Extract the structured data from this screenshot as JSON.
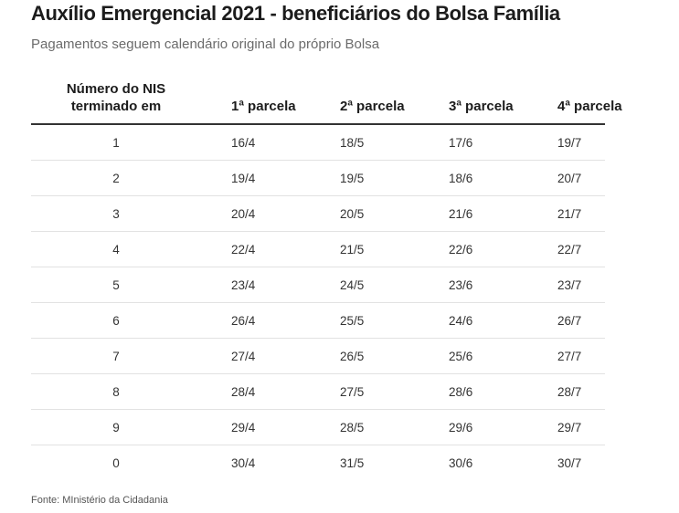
{
  "title": "Auxílio Emergencial 2021 - beneficiários do Bolsa Família",
  "subtitle": "Pagamentos seguem calendário original do próprio Bolsa",
  "table": {
    "headers": {
      "nis_line1": "Número do NIS",
      "nis_line2": "terminado em",
      "p1": "1ª parcela",
      "p2": "2ª parcela",
      "p3": "3ª parcela",
      "p4": "4ª parcela"
    },
    "rows": [
      {
        "nis": "1",
        "p1": "16/4",
        "p2": "18/5",
        "p3": "17/6",
        "p4": "19/7"
      },
      {
        "nis": "2",
        "p1": "19/4",
        "p2": "19/5",
        "p3": "18/6",
        "p4": "20/7"
      },
      {
        "nis": "3",
        "p1": "20/4",
        "p2": "20/5",
        "p3": "21/6",
        "p4": "21/7"
      },
      {
        "nis": "4",
        "p1": "22/4",
        "p2": "21/5",
        "p3": "22/6",
        "p4": "22/7"
      },
      {
        "nis": "5",
        "p1": "23/4",
        "p2": "24/5",
        "p3": "23/6",
        "p4": "23/7"
      },
      {
        "nis": "6",
        "p1": "26/4",
        "p2": "25/5",
        "p3": "24/6",
        "p4": "26/7"
      },
      {
        "nis": "7",
        "p1": "27/4",
        "p2": "26/5",
        "p3": "25/6",
        "p4": "27/7"
      },
      {
        "nis": "8",
        "p1": "28/4",
        "p2": "27/5",
        "p3": "28/6",
        "p4": "28/7"
      },
      {
        "nis": "9",
        "p1": "29/4",
        "p2": "28/5",
        "p3": "29/6",
        "p4": "29/7"
      },
      {
        "nis": "0",
        "p1": "30/4",
        "p2": "31/5",
        "p3": "30/6",
        "p4": "30/7"
      }
    ]
  },
  "source": "Fonte: MInistério da Cidadania"
}
